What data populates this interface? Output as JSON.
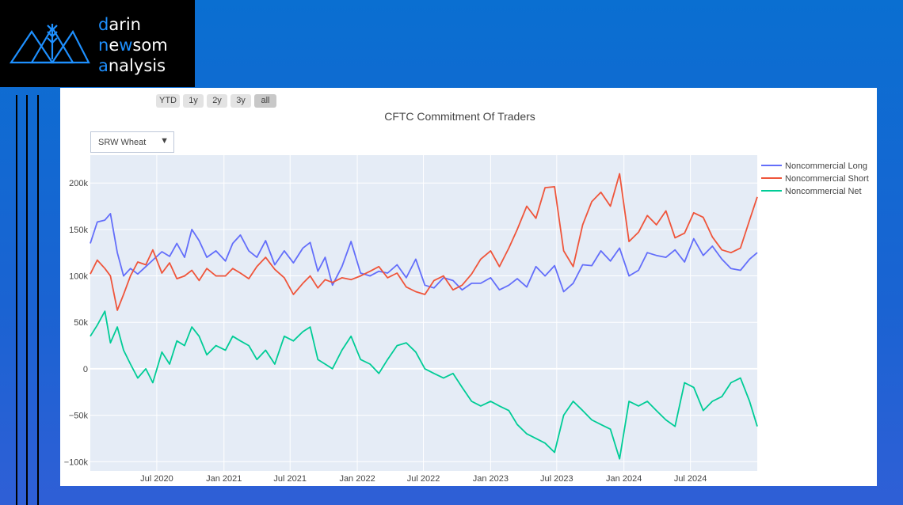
{
  "brand": {
    "line1": [
      "d",
      "arin"
    ],
    "line2": [
      "n",
      "e",
      "w",
      "som"
    ],
    "line3": [
      "a",
      "nalysis"
    ]
  },
  "range_selector": [
    "YTD",
    "1y",
    "2y",
    "3y",
    "all"
  ],
  "range_selector_active": "all",
  "dropdown": {
    "value": "SRW Wheat"
  },
  "chart_data": {
    "type": "line",
    "title": "CFTC Commitment Of Traders",
    "x_range": [
      "2020-01-01",
      "2024-12-31"
    ],
    "y_range": [
      -110000,
      230000
    ],
    "y_ticks": [
      200000,
      150000,
      100000,
      50000,
      0,
      -50000,
      -100000
    ],
    "y_tick_labels": [
      "200k",
      "150k",
      "100k",
      "50k",
      "0",
      "−50k",
      "−100k"
    ],
    "x_ticks": [
      "2020-07-01",
      "2021-01-01",
      "2021-07-01",
      "2022-01-01",
      "2022-07-01",
      "2023-01-01",
      "2023-07-01",
      "2024-01-01",
      "2024-07-01"
    ],
    "x_tick_labels": [
      "Jul 2020",
      "Jan 2021",
      "Jul 2021",
      "Jan 2022",
      "Jul 2022",
      "Jan 2023",
      "Jul 2023",
      "Jan 2024",
      "Jul 2024"
    ],
    "legend_position": "top-right",
    "grid": true,
    "series": [
      {
        "name": "Noncommercial Long",
        "color": "#636efa",
        "x": [
          "2020-01-01",
          "2020-01-20",
          "2020-02-10",
          "2020-02-25",
          "2020-03-15",
          "2020-04-01",
          "2020-04-20",
          "2020-05-10",
          "2020-06-01",
          "2020-06-20",
          "2020-07-15",
          "2020-08-05",
          "2020-08-25",
          "2020-09-15",
          "2020-10-05",
          "2020-10-25",
          "2020-11-15",
          "2020-12-10",
          "2021-01-05",
          "2021-01-25",
          "2021-02-15",
          "2021-03-10",
          "2021-04-01",
          "2021-04-25",
          "2021-05-20",
          "2021-06-15",
          "2021-07-10",
          "2021-08-05",
          "2021-08-25",
          "2021-09-15",
          "2021-10-05",
          "2021-10-25",
          "2021-11-20",
          "2021-12-15",
          "2022-01-10",
          "2022-02-05",
          "2022-03-01",
          "2022-03-25",
          "2022-04-20",
          "2022-05-15",
          "2022-06-10",
          "2022-07-05",
          "2022-07-30",
          "2022-08-25",
          "2022-09-20",
          "2022-10-15",
          "2022-11-10",
          "2022-12-05",
          "2023-01-01",
          "2023-01-25",
          "2023-02-20",
          "2023-03-15",
          "2023-04-10",
          "2023-05-05",
          "2023-05-30",
          "2023-06-25",
          "2023-07-20",
          "2023-08-15",
          "2023-09-10",
          "2023-10-05",
          "2023-10-30",
          "2023-11-25",
          "2023-12-20",
          "2024-01-15",
          "2024-02-10",
          "2024-03-05",
          "2024-03-30",
          "2024-04-25",
          "2024-05-20",
          "2024-06-15",
          "2024-07-10",
          "2024-08-05",
          "2024-08-30",
          "2024-09-25",
          "2024-10-20",
          "2024-11-15",
          "2024-12-10",
          "2024-12-31"
        ],
        "y": [
          135000,
          158000,
          160000,
          167000,
          125000,
          100000,
          108000,
          102000,
          110000,
          117000,
          126000,
          121000,
          135000,
          120000,
          150000,
          138000,
          120000,
          127000,
          116000,
          135000,
          144000,
          127000,
          120000,
          138000,
          112000,
          127000,
          114000,
          130000,
          136000,
          105000,
          120000,
          90000,
          110000,
          137000,
          103000,
          100000,
          105000,
          103000,
          112000,
          98000,
          118000,
          90000,
          87000,
          98000,
          95000,
          85000,
          92000,
          92000,
          98000,
          85000,
          90000,
          97000,
          88000,
          110000,
          100000,
          111000,
          83000,
          92000,
          112000,
          111000,
          127000,
          116000,
          130000,
          100000,
          106000,
          125000,
          122000,
          120000,
          128000,
          115000,
          140000,
          122000,
          132000,
          118000,
          108000,
          106000,
          118000,
          125000
        ]
      },
      {
        "name": "Noncommercial Short",
        "color": "#ef553b",
        "x": [
          "2020-01-01",
          "2020-01-20",
          "2020-02-10",
          "2020-02-25",
          "2020-03-15",
          "2020-04-01",
          "2020-04-20",
          "2020-05-10",
          "2020-06-01",
          "2020-06-20",
          "2020-07-15",
          "2020-08-05",
          "2020-08-25",
          "2020-09-15",
          "2020-10-05",
          "2020-10-25",
          "2020-11-15",
          "2020-12-10",
          "2021-01-05",
          "2021-01-25",
          "2021-02-15",
          "2021-03-10",
          "2021-04-01",
          "2021-04-25",
          "2021-05-20",
          "2021-06-15",
          "2021-07-10",
          "2021-08-05",
          "2021-08-25",
          "2021-09-15",
          "2021-10-05",
          "2021-10-25",
          "2021-11-20",
          "2021-12-15",
          "2022-01-10",
          "2022-02-05",
          "2022-03-01",
          "2022-03-25",
          "2022-04-20",
          "2022-05-15",
          "2022-06-10",
          "2022-07-05",
          "2022-07-30",
          "2022-08-25",
          "2022-09-20",
          "2022-10-15",
          "2022-11-10",
          "2022-12-05",
          "2023-01-01",
          "2023-01-25",
          "2023-02-20",
          "2023-03-15",
          "2023-04-10",
          "2023-05-05",
          "2023-05-30",
          "2023-06-25",
          "2023-07-20",
          "2023-08-15",
          "2023-09-10",
          "2023-10-05",
          "2023-10-30",
          "2023-11-25",
          "2023-12-20",
          "2024-01-15",
          "2024-02-10",
          "2024-03-05",
          "2024-03-30",
          "2024-04-25",
          "2024-05-20",
          "2024-06-15",
          "2024-07-10",
          "2024-08-05",
          "2024-08-30",
          "2024-09-25",
          "2024-10-20",
          "2024-11-15",
          "2024-12-10",
          "2024-12-31"
        ],
        "y": [
          102000,
          117000,
          108000,
          100000,
          63000,
          80000,
          100000,
          115000,
          112000,
          128000,
          103000,
          114000,
          97000,
          100000,
          106000,
          95000,
          108000,
          100000,
          100000,
          108000,
          103000,
          97000,
          110000,
          120000,
          107000,
          98000,
          80000,
          92000,
          100000,
          87000,
          96000,
          93000,
          98000,
          96000,
          100000,
          105000,
          110000,
          98000,
          103000,
          88000,
          83000,
          80000,
          95000,
          100000,
          85000,
          90000,
          102000,
          118000,
          127000,
          110000,
          130000,
          150000,
          175000,
          162000,
          195000,
          196000,
          127000,
          110000,
          155000,
          180000,
          190000,
          175000,
          210000,
          137000,
          147000,
          165000,
          155000,
          170000,
          141000,
          146000,
          168000,
          163000,
          142000,
          128000,
          125000,
          130000,
          160000,
          185000
        ]
      },
      {
        "name": "Noncommercial Net",
        "color": "#00cc96",
        "x": [
          "2020-01-01",
          "2020-01-20",
          "2020-02-10",
          "2020-02-25",
          "2020-03-15",
          "2020-04-01",
          "2020-04-20",
          "2020-05-10",
          "2020-06-01",
          "2020-06-20",
          "2020-07-15",
          "2020-08-05",
          "2020-08-25",
          "2020-09-15",
          "2020-10-05",
          "2020-10-25",
          "2020-11-15",
          "2020-12-10",
          "2021-01-05",
          "2021-01-25",
          "2021-02-15",
          "2021-03-10",
          "2021-04-01",
          "2021-04-25",
          "2021-05-20",
          "2021-06-15",
          "2021-07-10",
          "2021-08-05",
          "2021-08-25",
          "2021-09-15",
          "2021-10-05",
          "2021-10-25",
          "2021-11-20",
          "2021-12-15",
          "2022-01-10",
          "2022-02-05",
          "2022-03-01",
          "2022-03-25",
          "2022-04-20",
          "2022-05-15",
          "2022-06-10",
          "2022-07-05",
          "2022-07-30",
          "2022-08-25",
          "2022-09-20",
          "2022-10-15",
          "2022-11-10",
          "2022-12-05",
          "2023-01-01",
          "2023-01-25",
          "2023-02-20",
          "2023-03-15",
          "2023-04-10",
          "2023-05-05",
          "2023-05-30",
          "2023-06-25",
          "2023-07-20",
          "2023-08-15",
          "2023-09-10",
          "2023-10-05",
          "2023-10-30",
          "2023-11-25",
          "2023-12-20",
          "2024-01-15",
          "2024-02-10",
          "2024-03-05",
          "2024-03-30",
          "2024-04-25",
          "2024-05-20",
          "2024-06-15",
          "2024-07-10",
          "2024-08-05",
          "2024-08-30",
          "2024-09-25",
          "2024-10-20",
          "2024-11-15",
          "2024-12-10",
          "2024-12-31"
        ],
        "y": [
          35000,
          47000,
          62000,
          28000,
          45000,
          20000,
          5000,
          -10000,
          0,
          -15000,
          18000,
          5000,
          30000,
          25000,
          45000,
          35000,
          15000,
          25000,
          20000,
          35000,
          30000,
          25000,
          10000,
          20000,
          5000,
          35000,
          30000,
          40000,
          45000,
          10000,
          5000,
          0,
          20000,
          35000,
          10000,
          5000,
          -5000,
          10000,
          25000,
          28000,
          18000,
          0,
          -5000,
          -10000,
          -5000,
          -20000,
          -35000,
          -40000,
          -35000,
          -40000,
          -45000,
          -60000,
          -70000,
          -75000,
          -80000,
          -90000,
          -50000,
          -35000,
          -45000,
          -55000,
          -60000,
          -65000,
          -97000,
          -35000,
          -40000,
          -35000,
          -45000,
          -55000,
          -62000,
          -15000,
          -20000,
          -45000,
          -35000,
          -30000,
          -15000,
          -10000,
          -35000,
          -62000
        ]
      }
    ]
  }
}
